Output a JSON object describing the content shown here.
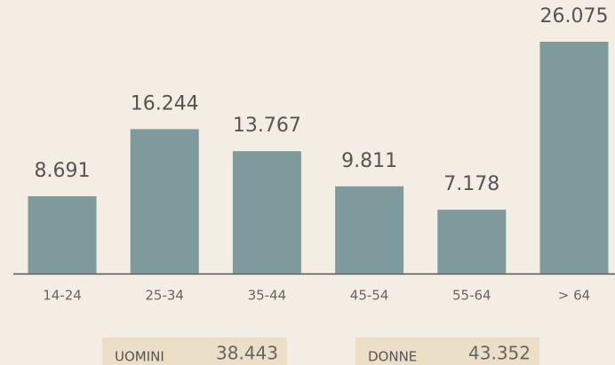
{
  "chart_data": {
    "type": "bar",
    "categories": [
      "14-24",
      "25-34",
      "35-44",
      "45-54",
      "55-64",
      "> 64"
    ],
    "values": [
      8691,
      16244,
      13767,
      9811,
      7178,
      26075
    ],
    "value_labels": [
      "8.691",
      "16.244",
      "13.767",
      "9.811",
      "7.178",
      "26.075"
    ],
    "color": "#7f9a9c",
    "totals": [
      {
        "label": "UOMINI",
        "value": "38.443"
      },
      {
        "label": "DONNE",
        "value": "43.352"
      }
    ]
  }
}
